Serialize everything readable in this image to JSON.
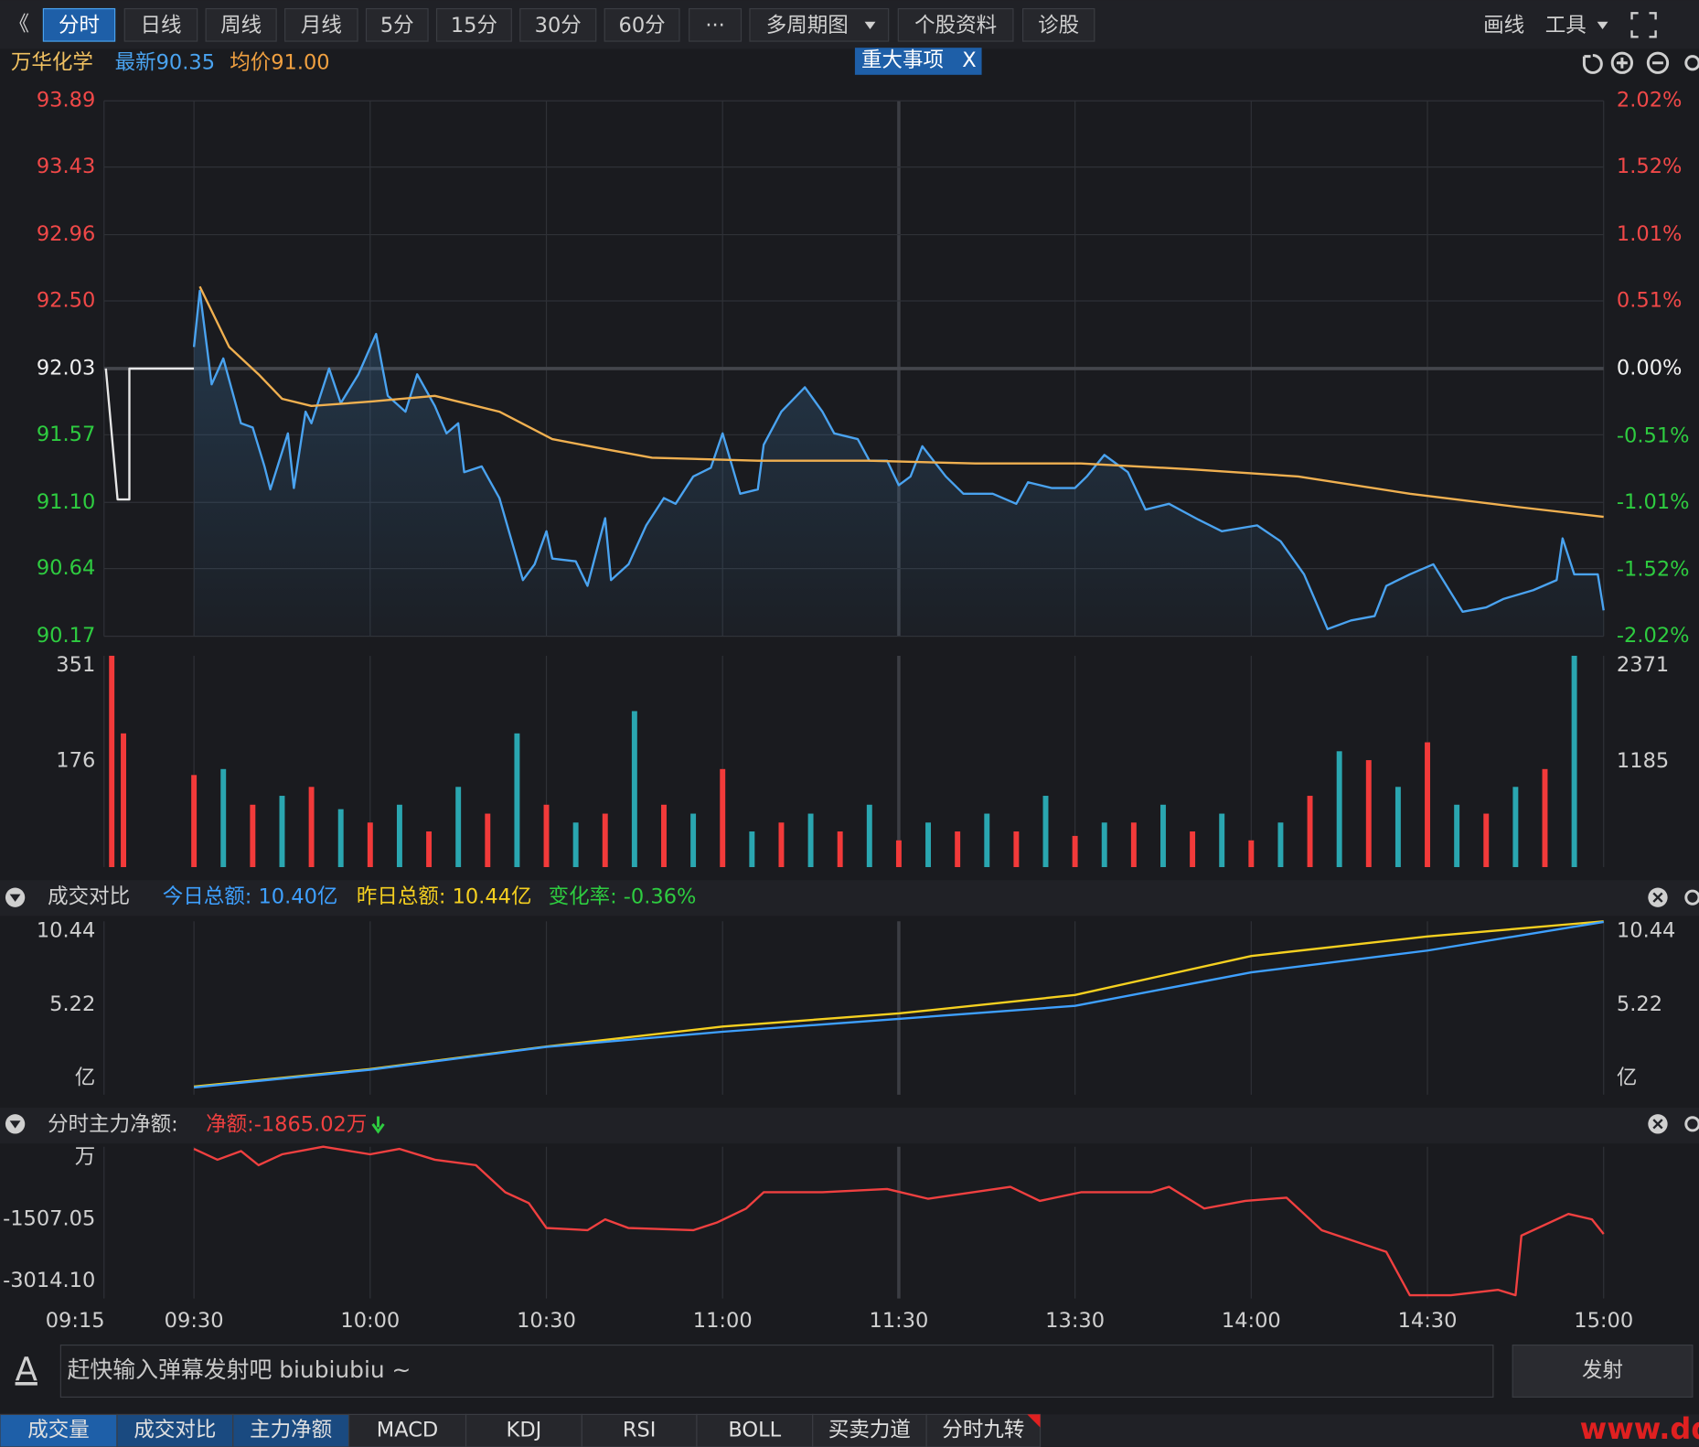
{
  "toolbar": {
    "back": "《",
    "tabs": [
      "分时",
      "日线",
      "周线",
      "月线",
      "5分",
      "15分",
      "30分",
      "60分",
      "···",
      "多周期图",
      "个股资料",
      "诊股"
    ],
    "active": 0,
    "tools": [
      "画线",
      "工具"
    ]
  },
  "info": {
    "name": "万华化学",
    "latest": "最新90.35",
    "avg": "均价91.00",
    "event": "重大事项",
    "event_close": "X"
  },
  "panels": {
    "turnover": {
      "title": "成交对比",
      "today": "今日总额: 10.40亿",
      "yesterday": "昨日总额: 10.44亿",
      "change": "变化率: -0.36%"
    },
    "netflow": {
      "title": "分时主力净额:",
      "net": "净额:-1865.02万"
    }
  },
  "chart_data": [
    {
      "type": "line",
      "grid": true,
      "ylim": [
        90.17,
        93.89
      ],
      "yticks": [
        93.89,
        93.43,
        92.96,
        {
          "value": 92.5,
          "label": "92.50"
        },
        92.03,
        91.57,
        {
          "value": 91.1,
          "label": "91.10"
        },
        90.64,
        90.17
      ],
      "y2lim": [
        -2.02,
        2.02
      ],
      "y2ticks": [
        {
          "value": 2.02,
          "label": "2.02%"
        },
        {
          "value": 1.52,
          "label": "1.52%"
        },
        {
          "value": 1.01,
          "label": "1.01%"
        },
        {
          "value": 0.51,
          "label": "0.51%"
        },
        {
          "value": 0,
          "label": "0.00%"
        },
        {
          "value": -0.51,
          "label": "-0.51%"
        },
        {
          "value": -1.01,
          "label": "-1.01%"
        },
        {
          "value": -1.52,
          "label": "-1.52%"
        },
        {
          "value": -2.02,
          "label": "-2.02%"
        }
      ],
      "series": [
        {
          "color": "#e6e6e6",
          "x": [
            -15,
            -13,
            -11,
            -11,
            0
          ],
          "values": [
            92.03,
            91.12,
            91.12,
            92.03,
            92.03
          ]
        },
        {
          "color": "#4aa3f0",
          "area": true,
          "x": [
            0,
            1,
            3,
            5,
            8,
            10,
            12,
            13,
            16,
            17,
            19,
            20,
            23,
            25,
            28,
            31,
            33,
            36,
            38,
            41,
            43,
            45,
            46,
            49,
            52,
            56,
            58,
            60,
            61,
            65,
            67,
            70,
            71,
            74,
            77,
            80,
            82,
            85,
            88,
            90,
            93,
            96,
            97,
            100,
            104,
            107,
            109,
            113,
            115,
            118,
            120,
            122,
            124,
            128,
            131,
            136,
            140,
            142,
            146,
            150,
            152,
            155,
            159,
            162,
            166,
            171,
            175,
            181,
            185,
            189,
            193,
            197,
            201,
            203,
            207,
            211,
            216,
            220,
            223,
            228,
            232,
            233,
            235,
            239,
            240
          ],
          "values": [
            92.18,
            92.57,
            91.92,
            92.1,
            91.65,
            91.62,
            91.35,
            91.19,
            91.58,
            91.2,
            91.73,
            91.65,
            92.03,
            91.79,
            91.99,
            92.27,
            91.84,
            91.73,
            91.99,
            91.77,
            91.58,
            91.65,
            91.31,
            91.35,
            91.13,
            90.56,
            90.67,
            90.9,
            90.71,
            90.69,
            90.52,
            90.99,
            90.56,
            90.67,
            90.94,
            91.13,
            91.09,
            91.28,
            91.34,
            91.58,
            91.16,
            91.19,
            91.5,
            91.73,
            91.9,
            91.73,
            91.58,
            91.54,
            91.39,
            91.39,
            91.22,
            91.28,
            91.49,
            91.28,
            91.16,
            91.16,
            91.09,
            91.24,
            91.2,
            91.2,
            91.28,
            91.43,
            91.31,
            91.05,
            91.09,
            90.98,
            90.9,
            90.94,
            90.83,
            90.6,
            90.22,
            90.28,
            90.31,
            90.52,
            90.6,
            90.67,
            90.34,
            90.37,
            90.43,
            90.49,
            90.56,
            90.85,
            90.6,
            90.6,
            90.35
          ]
        },
        {
          "color": "#f0b050",
          "x": [
            1,
            6,
            11,
            15,
            20,
            30,
            41,
            52,
            61,
            70,
            78,
            96,
            115,
            133,
            151,
            170,
            188,
            207,
            225,
            240
          ],
          "values": [
            92.6,
            92.18,
            91.99,
            91.82,
            91.77,
            91.8,
            91.84,
            91.73,
            91.54,
            91.47,
            91.41,
            91.39,
            91.39,
            91.37,
            91.37,
            91.33,
            91.28,
            91.16,
            91.07,
            91.0
          ]
        }
      ]
    },
    {
      "type": "bar",
      "ylim": [
        0,
        351
      ],
      "yticks": [
        176,
        351
      ],
      "y2lim": [
        0,
        2371
      ],
      "y2ticks": [
        1185,
        2371
      ],
      "x": [
        -14,
        -12,
        0,
        5,
        10,
        15,
        20,
        25,
        30,
        35,
        40,
        45,
        50,
        55,
        60,
        65,
        70,
        75,
        80,
        85,
        90,
        95,
        100,
        105,
        110,
        115,
        120,
        125,
        130,
        135,
        140,
        145,
        150,
        155,
        160,
        165,
        170,
        175,
        180,
        185,
        190,
        195,
        200,
        205,
        210,
        215,
        220,
        225,
        230,
        235
      ],
      "series": [
        {
          "color": "#f23a3a",
          "axis": "y2",
          "values": [
            2371,
            1500,
            1033,
            null,
            700,
            null,
            900,
            null,
            500,
            null,
            400,
            null,
            600,
            null,
            700,
            null,
            600,
            null,
            700,
            null,
            1100,
            null,
            500,
            null,
            400,
            null,
            300,
            null,
            400,
            null,
            400,
            null,
            350,
            null,
            500,
            null,
            400,
            null,
            300,
            null,
            800,
            null,
            1200,
            null,
            1400,
            null,
            600,
            null,
            1100,
            null
          ]
        },
        {
          "color": "#2aa6b0",
          "axis": "y2",
          "values": [
            null,
            null,
            null,
            1100,
            null,
            800,
            null,
            650,
            null,
            700,
            null,
            900,
            null,
            1500,
            null,
            500,
            null,
            1750,
            null,
            600,
            null,
            400,
            null,
            600,
            null,
            700,
            null,
            500,
            null,
            600,
            null,
            800,
            null,
            500,
            null,
            700,
            null,
            600,
            null,
            500,
            null,
            1300,
            null,
            900,
            null,
            700,
            null,
            900,
            null,
            2371
          ]
        }
      ]
    },
    {
      "type": "line",
      "ylim": [
        0,
        10.44
      ],
      "yticks": [
        {
          "value": 0,
          "label": "亿"
        },
        5.22,
        10.44
      ],
      "y2lim": [
        0,
        10.44
      ],
      "y2ticks": [
        {
          "value": 0,
          "label": "亿"
        },
        5.22,
        10.44
      ],
      "x": [
        0,
        30,
        60,
        90,
        120,
        150,
        180,
        210,
        240
      ],
      "series": [
        {
          "color": "#f5d020",
          "values": [
            0.1,
            1.2,
            2.6,
            3.86,
            4.68,
            5.83,
            8.27,
            9.49,
            10.44
          ]
        },
        {
          "color": "#3ea0ff",
          "values": [
            0.05,
            1.15,
            2.58,
            3.53,
            4.34,
            5.15,
            7.25,
            8.61,
            10.4
          ]
        }
      ]
    },
    {
      "type": "line",
      "xlim": [
        -15,
        240
      ],
      "xticks": [
        {
          "value": -15,
          "label": "09:15"
        },
        {
          "value": 0,
          "label": "09:30"
        },
        {
          "value": 30,
          "label": "10:00"
        },
        {
          "value": 60,
          "label": "10:30"
        },
        {
          "value": 90,
          "label": "11:00"
        },
        {
          "value": 120,
          "label": "11:30"
        },
        {
          "value": 150,
          "label": "13:30"
        },
        {
          "value": 180,
          "label": "14:00"
        },
        {
          "value": 210,
          "label": "14:30"
        },
        {
          "value": 240,
          "label": "15:00"
        }
      ],
      "ylim": [
        -3437,
        264
      ],
      "yticks": [
        {
          "value": 0,
          "label": "万"
        },
        -1507.05,
        {
          "value": -3014.1,
          "label": "-3014.10"
        }
      ],
      "x": [
        0,
        4,
        8,
        11,
        15,
        22,
        30,
        35,
        41,
        48,
        53,
        57,
        60,
        67,
        70,
        74,
        85,
        89,
        94,
        97,
        107,
        118,
        125,
        139,
        144,
        151,
        163,
        166,
        172,
        179,
        186,
        192,
        203,
        207,
        214,
        222,
        225,
        226,
        234,
        238,
        240
      ],
      "series": [
        {
          "color": "#f04040",
          "values": [
            211,
            -53,
            159,
            -185,
            79,
            264,
            79,
            211,
            -53,
            -185,
            -846,
            -1110,
            -1719,
            -1771,
            -1507,
            -1719,
            -1771,
            -1586,
            -1243,
            -846,
            -846,
            -767,
            -1005,
            -714,
            -1058,
            -846,
            -846,
            -714,
            -1243,
            -1058,
            -978,
            -1771,
            -2300,
            -3358,
            -3358,
            -3226,
            -3358,
            -1904,
            -1375,
            -1507,
            -1865.02
          ]
        }
      ]
    }
  ],
  "input": {
    "icon": "A",
    "placeholder": "赶快输入弹幕发射吧 biubiubiu ~",
    "button": "发射"
  },
  "bottom_tabs": {
    "items": [
      "成交量",
      "成交对比",
      "主力净额",
      "MACD",
      "KDJ",
      "RSI",
      "BOLL",
      "买卖力道",
      "分时九转"
    ],
    "active": [
      0,
      1,
      2
    ]
  },
  "watermark": "www.ddgp.ne"
}
